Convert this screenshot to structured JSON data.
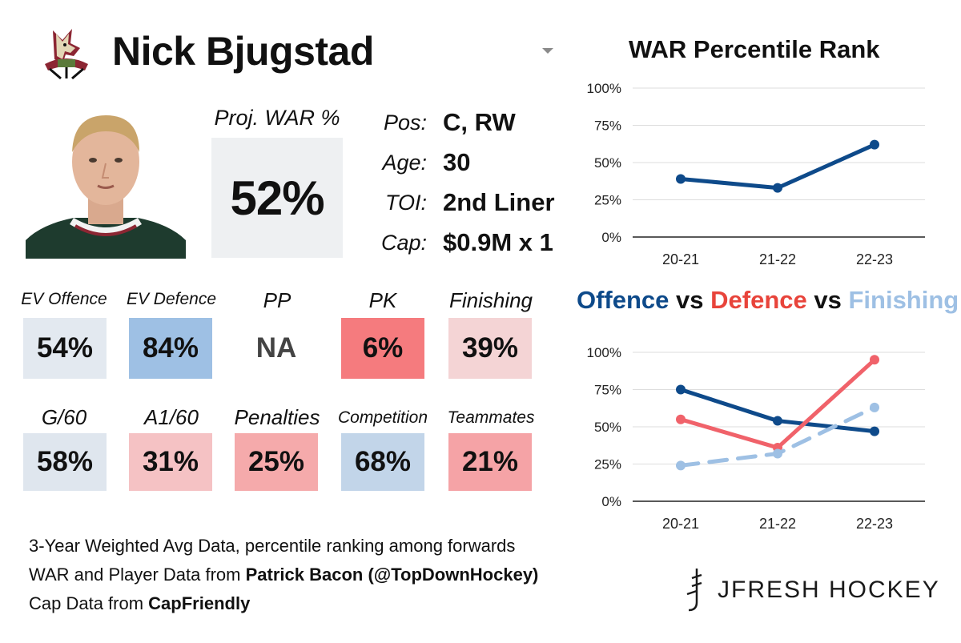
{
  "header": {
    "player_name": "Nick Bjugstad",
    "team_logo": "coyotes-logo"
  },
  "projection": {
    "label": "Proj. WAR %",
    "value": "52%"
  },
  "info": [
    {
      "key": "Pos:",
      "value": "C, RW"
    },
    {
      "key": "Age:",
      "value": "30"
    },
    {
      "key": "TOI:",
      "value": "2nd Liner"
    },
    {
      "key": "Cap:",
      "value": "$0.9M x 1"
    }
  ],
  "stats_row1": [
    {
      "label": "EV Offence",
      "value": "54%",
      "color": "#e3e9f0"
    },
    {
      "label": "EV Defence",
      "value": "84%",
      "color": "#9ec0e4"
    },
    {
      "label": "PP",
      "value": "NA",
      "color": "#ffffff"
    },
    {
      "label": "PK",
      "value": "6%",
      "color": "#f57b7e"
    },
    {
      "label": "Finishing",
      "value": "39%",
      "color": "#f4d4d5"
    }
  ],
  "stats_row2": [
    {
      "label": "G/60",
      "value": "58%",
      "color": "#dfe6ee"
    },
    {
      "label": "A1/60",
      "value": "31%",
      "color": "#f5c2c4"
    },
    {
      "label": "Penalties",
      "value": "25%",
      "color": "#f5aaab"
    },
    {
      "label": "Competition",
      "value": "68%",
      "color": "#c2d5e9"
    },
    {
      "label": "Teammates",
      "value": "21%",
      "color": "#f5a3a6"
    }
  ],
  "footer": {
    "line1": "3-Year Weighted Avg Data, percentile ranking among forwards",
    "line2_prefix": "WAR and Player Data from ",
    "line2_bold": "Patrick Bacon (@TopDownHockey)",
    "line3_prefix": "Cap Data from ",
    "line3_bold": "CapFriendly"
  },
  "brand": {
    "name": "JFRESH HOCKEY"
  },
  "colors": {
    "offence": "#0e4a8a",
    "defence": "#f0626a",
    "finishing": "#9ec0e4",
    "defence_title": "#e8443b"
  },
  "chart_data": [
    {
      "type": "line",
      "title": "WAR Percentile Rank",
      "categories": [
        "20-21",
        "21-22",
        "22-23"
      ],
      "series": [
        {
          "name": "WAR",
          "values": [
            39,
            33,
            62
          ]
        }
      ],
      "ylim": [
        0,
        100
      ],
      "yticks": [
        "0%",
        "25%",
        "50%",
        "75%",
        "100%"
      ],
      "grid": true
    },
    {
      "type": "line",
      "title_parts": [
        "Offence",
        " vs ",
        "Defence",
        " vs ",
        "Finishing"
      ],
      "categories": [
        "20-21",
        "21-22",
        "22-23"
      ],
      "series": [
        {
          "name": "Offence",
          "values": [
            75,
            54,
            47
          ]
        },
        {
          "name": "Defence",
          "values": [
            55,
            36,
            95
          ]
        },
        {
          "name": "Finishing",
          "values": [
            24,
            32,
            63
          ]
        }
      ],
      "ylim": [
        0,
        100
      ],
      "yticks": [
        "0%",
        "25%",
        "50%",
        "75%",
        "100%"
      ],
      "grid": true
    }
  ]
}
